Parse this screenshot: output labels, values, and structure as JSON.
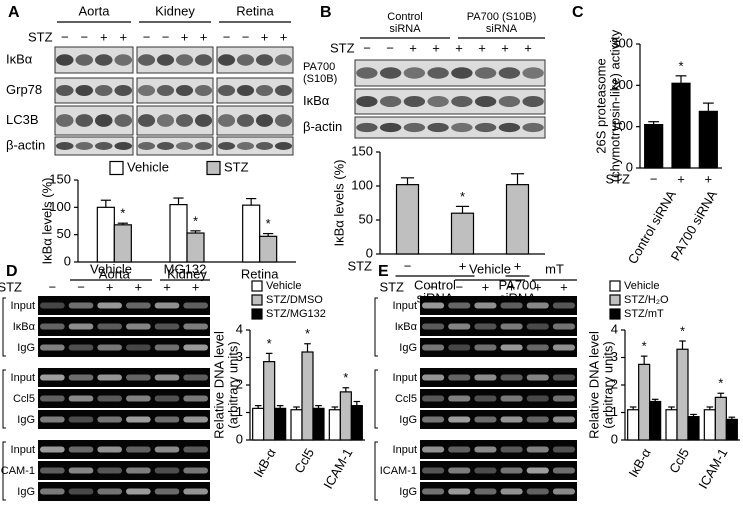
{
  "figure": {
    "A": {
      "label": "A",
      "stz_label": "STZ",
      "groups": [
        {
          "label": "Aorta",
          "stz": [
            "−",
            "−",
            "+",
            "+"
          ]
        },
        {
          "label": "Kidney",
          "stz": [
            "−",
            "−",
            "+",
            "+"
          ]
        },
        {
          "label": "Retina",
          "stz": [
            "−",
            "−",
            "+",
            "+"
          ]
        }
      ],
      "blots": [
        "IκBα",
        "Grp78",
        "LC3B",
        "β-actin"
      ]
    },
    "B": {
      "label": "B",
      "stz_label": "STZ",
      "groups": [
        [
          "Control",
          "siRNA"
        ],
        [
          "PA700 (S10B)",
          "siRNA"
        ]
      ],
      "stz": [
        "−",
        "−",
        "+",
        "+",
        "+",
        "+",
        "+",
        "+"
      ],
      "blots": [
        [
          "PA700",
          "(S10B)"
        ],
        [
          "IκBα"
        ],
        [
          "β-actin"
        ]
      ]
    },
    "C": {
      "label": "C"
    },
    "D": {
      "label": "D",
      "stz_label": "STZ",
      "groups": [
        "Vehicle",
        "MG132"
      ],
      "stz": [
        "−",
        "−",
        "+",
        "+",
        "+",
        "+"
      ],
      "gels": [
        [
          "Input",
          "IκBα",
          "IgG"
        ],
        [
          "Input",
          "Ccl5",
          "IgG"
        ],
        [
          "Input",
          "ICAM-1",
          "IgG"
        ]
      ]
    },
    "E": {
      "label": "E",
      "stz_label": "STZ",
      "groups": [
        "Vehicle",
        "mT"
      ],
      "stz": [
        "−",
        "−",
        "+",
        "+",
        "+",
        "+"
      ],
      "gels": [
        [
          "Input",
          "IκBα",
          "IgG"
        ],
        [
          "Input",
          "Ccl5",
          "IgG"
        ],
        [
          "Input",
          "ICAM-1",
          "IgG"
        ]
      ]
    }
  },
  "chart_data": [
    {
      "type": "bar",
      "ylabel": [
        "IκBα levels (%)"
      ],
      "categories": [
        "Aorta",
        "Kidney",
        "Retina"
      ],
      "series": [
        {
          "name": "Vehicle",
          "color": "#ffffff",
          "values": [
            100,
            105,
            104
          ],
          "errors": [
            13,
            12,
            12
          ]
        },
        {
          "name": "STZ",
          "color": "#bfbfbf",
          "values": [
            68,
            53,
            47
          ],
          "errors": [
            3,
            4,
            5
          ]
        }
      ],
      "ylim": [
        0,
        150
      ],
      "yticks": [
        0,
        50,
        100,
        150
      ],
      "legend": "top",
      "annotations": [
        {
          "text": "*",
          "series": "STZ",
          "category": "Aorta"
        },
        {
          "text": "*",
          "series": "STZ",
          "category": "Kidney"
        },
        {
          "text": "*",
          "series": "STZ",
          "category": "Retina"
        }
      ]
    },
    {
      "type": "bar",
      "ylabel": [
        "IκBα levels (%)"
      ],
      "x_label": "STZ",
      "categories": [
        "−",
        "+",
        "+"
      ],
      "values": [
        102,
        60,
        102
      ],
      "errors": [
        10,
        10,
        16
      ],
      "color": "#bfbfbf",
      "ylim": [
        0,
        150
      ],
      "yticks": [
        0,
        50,
        100,
        150
      ],
      "groups": [
        [
          "Control",
          "siRNA"
        ],
        [
          "PA700",
          "siRNA"
        ]
      ],
      "annotations": [
        {
          "text": "*",
          "at": 1
        }
      ]
    },
    {
      "type": "bar",
      "ylabel": [
        "26S proteasome",
        "(chymotrypsin-like) activity"
      ],
      "x_label": "STZ",
      "categories": [
        "−",
        "+",
        "+"
      ],
      "values": [
        105,
        205,
        137
      ],
      "errors": [
        7,
        18,
        20
      ],
      "color": "#000000",
      "ylim": [
        0,
        300
      ],
      "yticks": [
        0,
        100,
        200,
        300
      ],
      "groups": [
        [
          "Control siRNA"
        ],
        [
          "PA700 siRNA"
        ]
      ],
      "annotations": [
        {
          "text": "*",
          "at": 1
        }
      ]
    },
    {
      "type": "bar",
      "ylabel": [
        "Relative DNA level",
        "(arbitrary units)"
      ],
      "categories": [
        "IκB-α",
        "Ccl5",
        "ICAM-1"
      ],
      "series": [
        {
          "name": "Vehicle",
          "color": "#ffffff",
          "values": [
            1.15,
            1.1,
            1.1
          ],
          "errors": [
            0.1,
            0.1,
            0.1
          ]
        },
        {
          "name": "STZ/DMSO",
          "color": "#bfbfbf",
          "values": [
            2.85,
            3.2,
            1.75
          ],
          "errors": [
            0.3,
            0.3,
            0.15
          ]
        },
        {
          "name": "STZ/MG132",
          "color": "#000000",
          "values": [
            1.15,
            1.15,
            1.25
          ],
          "errors": [
            0.1,
            0.1,
            0.15
          ]
        }
      ],
      "ylim": [
        0,
        4
      ],
      "yticks": [
        0,
        1,
        2,
        3,
        4
      ],
      "legend": "top-left",
      "annotations": [
        {
          "text": "*",
          "series": "STZ/DMSO",
          "category": "IκB-α"
        },
        {
          "text": "*",
          "series": "STZ/DMSO",
          "category": "Ccl5"
        },
        {
          "text": "*",
          "series": "STZ/DMSO",
          "category": "ICAM-1"
        }
      ]
    },
    {
      "type": "bar",
      "ylabel": [
        "Relative DNA level",
        "(arbitrary units)"
      ],
      "categories": [
        "IκB-α",
        "Ccl5",
        "ICAM-1"
      ],
      "series": [
        {
          "name": "Vehicle",
          "color": "#ffffff",
          "values": [
            1.1,
            1.1,
            1.1
          ],
          "errors": [
            0.1,
            0.1,
            0.1
          ]
        },
        {
          "name": "STZ/H₂O",
          "color": "#bfbfbf",
          "values": [
            2.75,
            3.3,
            1.55
          ],
          "errors": [
            0.3,
            0.3,
            0.15
          ]
        },
        {
          "name": "STZ/mT",
          "color": "#000000",
          "values": [
            1.4,
            0.85,
            0.75
          ],
          "errors": [
            0.08,
            0.08,
            0.08
          ]
        }
      ],
      "ylim": [
        0,
        4
      ],
      "yticks": [
        0,
        1,
        2,
        3,
        4
      ],
      "legend": "top-left",
      "annotations": [
        {
          "text": "*",
          "series": "STZ/H₂O",
          "category": "IκB-α"
        },
        {
          "text": "*",
          "series": "STZ/H₂O",
          "category": "Ccl5"
        },
        {
          "text": "*",
          "series": "STZ/H₂O",
          "category": "ICAM-1"
        }
      ]
    }
  ]
}
